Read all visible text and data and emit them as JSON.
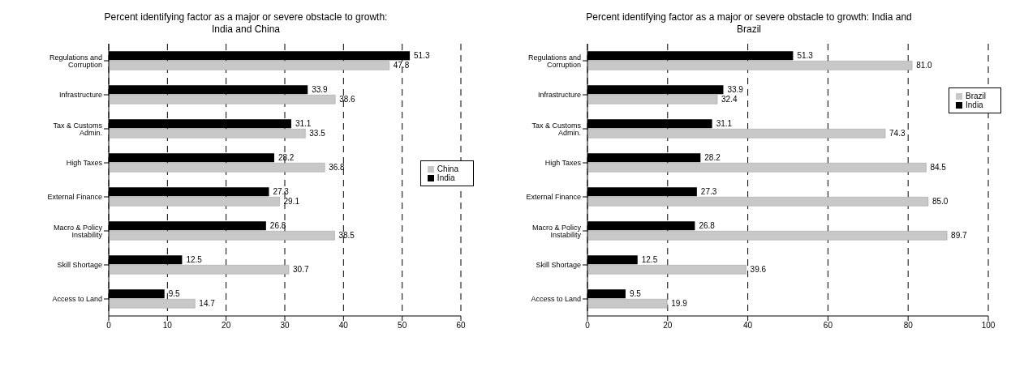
{
  "chart_data": [
    {
      "type": "bar",
      "orientation": "horizontal",
      "title": "Percent identifying factor as a major or severe obstacle to growth: India and China",
      "categories": [
        "Regulations and Corruption",
        "Infrastructure",
        "Tax & Customs Admin.",
        "High Taxes",
        "External Finance",
        "Macro & Policy Instability",
        "Skill Shortage",
        "Access to Land"
      ],
      "series": [
        {
          "name": "India",
          "color": "#000000",
          "values": [
            51.3,
            33.9,
            31.1,
            28.2,
            27.3,
            26.8,
            12.5,
            9.5
          ],
          "value_labels": [
            "51.3",
            "33.9",
            "31.1",
            "28.2",
            "27.3",
            "26.8",
            "12.5",
            "9.5"
          ]
        },
        {
          "name": "China",
          "color": "#c8c8c8",
          "values": [
            47.8,
            38.6,
            33.5,
            36.8,
            29.1,
            38.5,
            30.7,
            14.7
          ],
          "value_labels": [
            "47.8",
            "38.6",
            "33.5",
            "36.8",
            "29.1",
            "38.5",
            "30.7",
            "14.7"
          ]
        }
      ],
      "xlim": [
        0,
        60
      ],
      "xticks": [
        0,
        10,
        20,
        30,
        40,
        50,
        60
      ],
      "grid": "x",
      "legend": "right"
    },
    {
      "type": "bar",
      "orientation": "horizontal",
      "title": "Percent identifying factor as a major or severe obstacle to growth: India and Brazil",
      "categories": [
        "Regulations and Corruption",
        "Infrastructure",
        "Tax & Customs Admin.",
        "High Taxes",
        "External Finance",
        "Macro & Policy Instability",
        "Skill Shortage",
        "Access to Land"
      ],
      "series": [
        {
          "name": "India",
          "color": "#000000",
          "values": [
            51.3,
            33.9,
            31.1,
            28.2,
            27.3,
            26.8,
            12.5,
            9.5
          ],
          "value_labels": [
            "51.3",
            "33.9",
            "31.1",
            "28.2",
            "27.3",
            "26.8",
            "12.5",
            "9.5"
          ]
        },
        {
          "name": "Brazil",
          "color": "#c8c8c8",
          "values": [
            81.0,
            32.4,
            74.3,
            84.5,
            85.0,
            89.7,
            39.6,
            19.9
          ],
          "value_labels": [
            "81.0",
            "32.4",
            "74.3",
            "84.5",
            "85.0",
            "89.7",
            "39.6",
            "19.9"
          ]
        }
      ],
      "xlim": [
        0,
        100
      ],
      "xticks": [
        0,
        20,
        40,
        60,
        80,
        100
      ],
      "grid": "x",
      "legend": "top right"
    }
  ]
}
